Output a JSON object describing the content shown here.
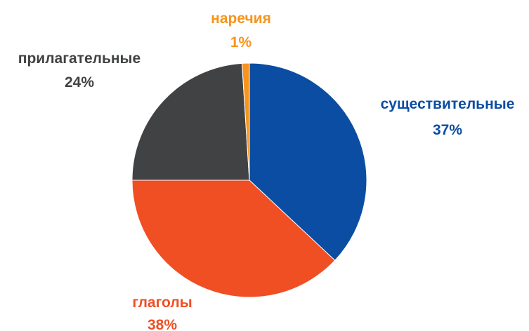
{
  "chart_data": {
    "type": "pie",
    "title": "",
    "legend": "none",
    "slices": [
      {
        "label": "существительные",
        "value": 37,
        "display": "37%",
        "color": "#0b4da2"
      },
      {
        "label": "глаголы",
        "value": 38,
        "display": "38%",
        "color": "#f04e23"
      },
      {
        "label": "прилагательные",
        "value": 24,
        "display": "24%",
        "color": "#404244"
      },
      {
        "label": "наречия",
        "value": 1,
        "display": "1%",
        "color": "#f7941d"
      }
    ],
    "label_colors": [
      "#0b4da2",
      "#f04e23",
      "#404244",
      "#f7941d"
    ]
  }
}
